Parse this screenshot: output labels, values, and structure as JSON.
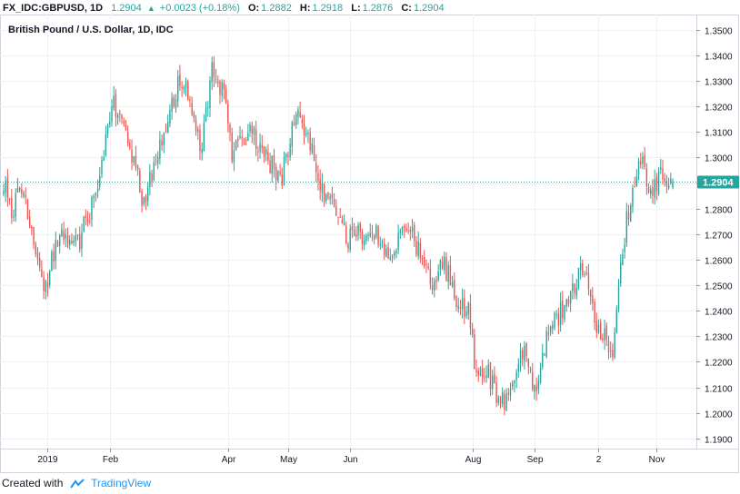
{
  "header": {
    "symbol": "FX_IDC:GBPUSD, 1D",
    "last": "1.2904",
    "change": "+0.0023 (+0.18%)",
    "open_label": "O:",
    "open": "1.2882",
    "high_label": "H:",
    "high": "1.2918",
    "low_label": "L:",
    "low": "1.2876",
    "close_label": "C:",
    "close": "1.2904"
  },
  "footer": {
    "created_with": "Created with",
    "brand": "TradingView"
  },
  "colors": {
    "up": "#26a69a",
    "down": "#ef5350",
    "last_line": "#26a69a",
    "grid": "#eef0f3"
  },
  "chart_data": {
    "type": "candlestick",
    "title": "British Pound / U.S. Dollar, 1D, IDC",
    "ylim": [
      1.186,
      1.356
    ],
    "y_ticks": [
      "1.3500",
      "1.3400",
      "1.3300",
      "1.3200",
      "1.3100",
      "1.3000",
      "1.2900",
      "1.2800",
      "1.2700",
      "1.2600",
      "1.2500",
      "1.2400",
      "1.2300",
      "1.2200",
      "1.2100",
      "1.2000",
      "1.1900"
    ],
    "x_labels": [
      {
        "label": "2019",
        "day": 22
      },
      {
        "label": "Feb",
        "day": 53
      },
      {
        "label": "Apr",
        "day": 112
      },
      {
        "label": "May",
        "day": 142
      },
      {
        "label": "Jun",
        "day": 173
      },
      {
        "label": "Aug",
        "day": 234
      },
      {
        "label": "Sep",
        "day": 265
      },
      {
        "label": "2",
        "day": 297
      },
      {
        "label": "Nov",
        "day": 326
      }
    ],
    "last_price": 1.2904,
    "last_price_label": "1.2904",
    "anchors": [
      [
        0,
        1.29
      ],
      [
        4,
        1.28
      ],
      [
        10,
        1.288
      ],
      [
        16,
        1.265
      ],
      [
        20,
        1.248
      ],
      [
        28,
        1.27
      ],
      [
        38,
        1.268
      ],
      [
        45,
        1.284
      ],
      [
        55,
        1.32
      ],
      [
        62,
        1.306
      ],
      [
        70,
        1.282
      ],
      [
        76,
        1.3
      ],
      [
        82,
        1.315
      ],
      [
        88,
        1.332
      ],
      [
        95,
        1.318
      ],
      [
        98,
        1.3
      ],
      [
        104,
        1.335
      ],
      [
        110,
        1.325
      ],
      [
        114,
        1.3
      ],
      [
        120,
        1.31
      ],
      [
        128,
        1.306
      ],
      [
        138,
        1.29
      ],
      [
        146,
        1.317
      ],
      [
        152,
        1.308
      ],
      [
        158,
        1.288
      ],
      [
        166,
        1.278
      ],
      [
        172,
        1.268
      ],
      [
        180,
        1.27
      ],
      [
        186,
        1.272
      ],
      [
        192,
        1.26
      ],
      [
        200,
        1.275
      ],
      [
        206,
        1.265
      ],
      [
        214,
        1.25
      ],
      [
        220,
        1.258
      ],
      [
        226,
        1.245
      ],
      [
        232,
        1.24
      ],
      [
        236,
        1.213
      ],
      [
        242,
        1.215
      ],
      [
        246,
        1.207
      ],
      [
        252,
        1.205
      ],
      [
        258,
        1.225
      ],
      [
        262,
        1.222
      ],
      [
        266,
        1.205
      ],
      [
        270,
        1.227
      ],
      [
        278,
        1.24
      ],
      [
        286,
        1.252
      ],
      [
        290,
        1.256
      ],
      [
        296,
        1.235
      ],
      [
        300,
        1.23
      ],
      [
        304,
        1.221
      ],
      [
        308,
        1.26
      ],
      [
        314,
        1.29
      ],
      [
        318,
        1.3
      ],
      [
        324,
        1.285
      ],
      [
        328,
        1.295
      ],
      [
        332,
        1.29
      ],
      [
        334,
        1.2904
      ]
    ]
  }
}
